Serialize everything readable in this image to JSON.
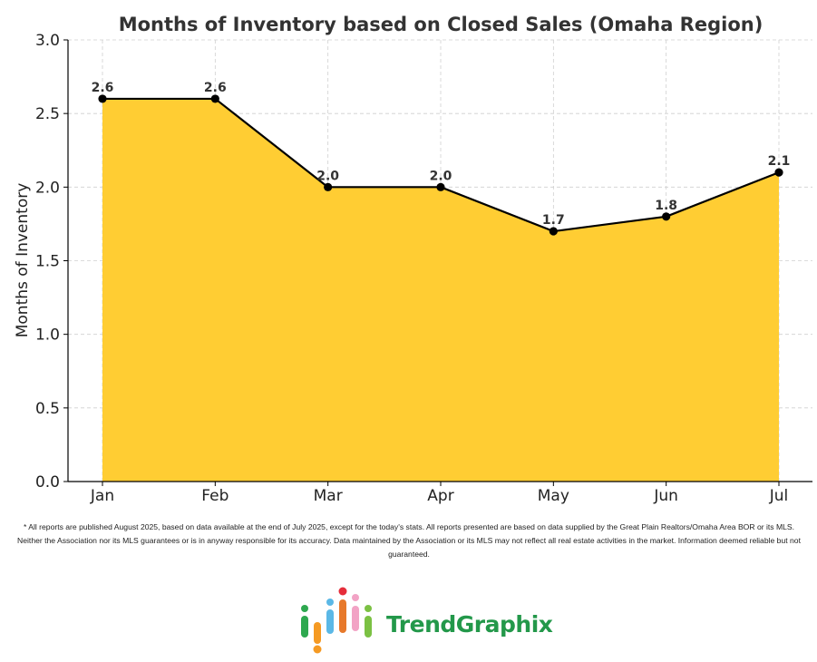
{
  "chart_data": {
    "type": "area",
    "title": "Months of Inventory based on Closed Sales (Omaha Region)",
    "xlabel": "",
    "ylabel": "Months of Inventory",
    "categories": [
      "Jan",
      "Feb",
      "Mar",
      "Apr",
      "May",
      "Jun",
      "Jul"
    ],
    "values": [
      2.6,
      2.6,
      2.0,
      2.0,
      1.7,
      1.8,
      2.1
    ],
    "data_labels": [
      "2.6",
      "2.6",
      "2.0",
      "2.0",
      "1.7",
      "1.8",
      "2.1"
    ],
    "ylim": [
      0,
      3.0
    ],
    "yticks": [
      0,
      0.5,
      1.0,
      1.5,
      2.0,
      2.5,
      3.0
    ],
    "ytick_labels": [
      "0.0",
      "0.5",
      "1.0",
      "1.5",
      "2.0",
      "2.5",
      "3.0"
    ],
    "grid": true,
    "fill_color": "#ffcd33",
    "line_color": "#000000",
    "marker_color": "#000000"
  },
  "footer": {
    "disclaimer": "* All reports are published August 2025, based on data available at the end of July 2025, except for the today's stats. All reports presented are based on data supplied by the Great Plain Realtors/Omaha Area BOR or its MLS. Neither the Association nor its MLS guarantees or is in anyway responsible for its accuracy. Data maintained by the Association or its MLS may not reflect all real estate activities in the market. Information deemed reliable but not guaranteed."
  },
  "brand": {
    "name": "TrendGraphix",
    "name_color": "#23984a"
  }
}
